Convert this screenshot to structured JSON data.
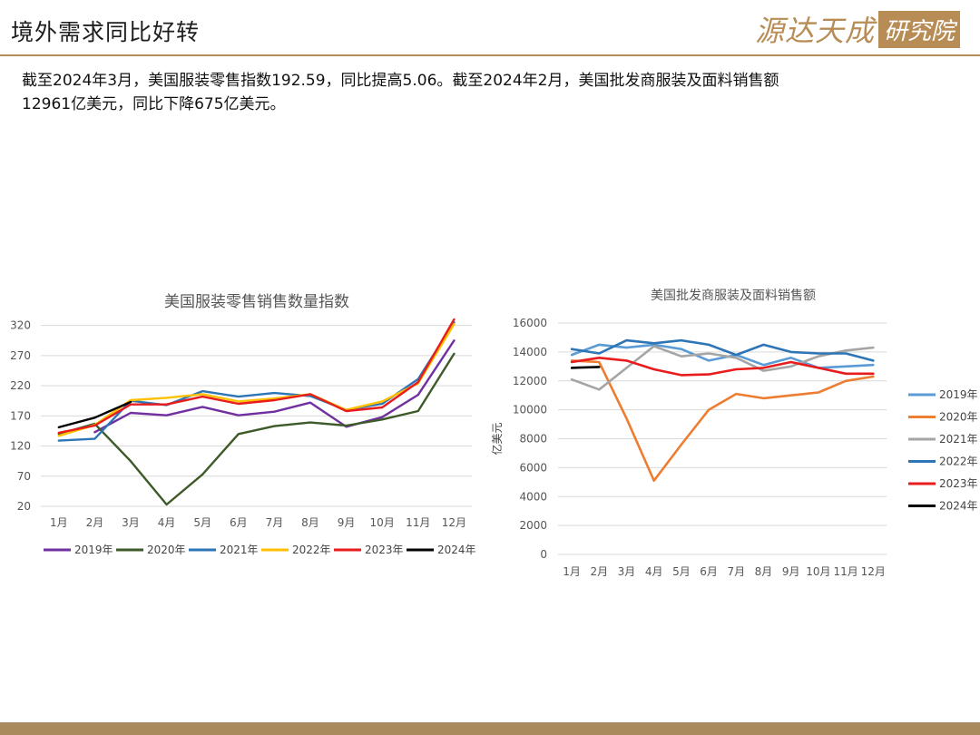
{
  "page": {
    "title": "境外需求同比好转",
    "logo_text_a": "源达天成",
    "logo_text_b": "研究院",
    "summary_line1": "截至2024年3月，美国服装零售指数192.59，同比提高5.06。截至2024年2月，美国批发商服装及面料销售额",
    "summary_line2": "12961亿美元，同比下降675亿美元。"
  },
  "chart_data": [
    {
      "type": "line",
      "title": "美国服装零售销售数量指数",
      "xlabel": "",
      "ylabel": "",
      "ylim": [
        20,
        330
      ],
      "yticks": [
        20,
        70,
        120,
        170,
        220,
        270,
        320
      ],
      "grid": true,
      "legend": "bottom",
      "categories": [
        "1月",
        "2月",
        "3月",
        "4月",
        "5月",
        "6月",
        "7月",
        "8月",
        "9月",
        "10月",
        "11月",
        "12月"
      ],
      "series": [
        {
          "name": "2019年",
          "color": "#7030a0",
          "values": [
            null,
            143,
            175,
            171,
            185,
            171,
            177,
            192,
            152,
            168,
            205,
            295
          ]
        },
        {
          "name": "2020年",
          "color": "#3d5a28",
          "values": [
            140,
            157,
            95,
            23,
            73,
            140,
            153,
            159,
            154,
            164,
            178,
            273
          ]
        },
        {
          "name": "2021年",
          "color": "#2e75b6",
          "values": [
            129,
            132,
            195,
            188,
            211,
            202,
            208,
            203,
            180,
            190,
            231,
            325
          ]
        },
        {
          "name": "2022年",
          "color": "#ffc000",
          "values": [
            137,
            155,
            196,
            200,
            206,
            194,
            199,
            206,
            180,
            194,
            224,
            322
          ]
        },
        {
          "name": "2023年",
          "color": "#e81c1c",
          "values": [
            142,
            154,
            189,
            189,
            202,
            190,
            196,
            206,
            178,
            184,
            226,
            330
          ]
        },
        {
          "name": "2024年",
          "color": "#000000",
          "values": [
            151,
            167,
            193,
            null,
            null,
            null,
            null,
            null,
            null,
            null,
            null,
            null
          ]
        }
      ]
    },
    {
      "type": "line",
      "title": "美国批发商服装及面料销售额",
      "xlabel": "",
      "ylabel": "亿美元",
      "ylim": [
        0,
        16000
      ],
      "yticks": [
        0,
        2000,
        4000,
        6000,
        8000,
        10000,
        12000,
        14000,
        16000
      ],
      "grid": true,
      "legend": "right",
      "categories": [
        "1月",
        "2月",
        "3月",
        "4月",
        "5月",
        "6月",
        "7月",
        "8月",
        "9月",
        "10月",
        "11月",
        "12月"
      ],
      "series": [
        {
          "name": "2019年",
          "color": "#5b9bd5",
          "values": [
            13800,
            14500,
            14300,
            14500,
            14200,
            13400,
            13800,
            13100,
            13600,
            12900,
            13000,
            13100
          ]
        },
        {
          "name": "2020年",
          "color": "#ed7d31",
          "values": [
            13400,
            13300,
            9400,
            5100,
            7600,
            10000,
            11100,
            10800,
            11000,
            11200,
            12000,
            12300
          ]
        },
        {
          "name": "2021年",
          "color": "#a5a5a5",
          "values": [
            12100,
            11400,
            12900,
            14400,
            13700,
            13900,
            13600,
            12700,
            13000,
            13700,
            14100,
            14300
          ]
        },
        {
          "name": "2022年",
          "color": "#2e75b6",
          "values": [
            14200,
            13900,
            14800,
            14600,
            14800,
            14500,
            13800,
            14500,
            14000,
            13900,
            13900,
            13400
          ]
        },
        {
          "name": "2023年",
          "color": "#e81c1c",
          "values": [
            13300,
            13600,
            13400,
            12800,
            12400,
            12450,
            12800,
            12900,
            13300,
            12900,
            12500,
            12500
          ]
        },
        {
          "name": "2024年",
          "color": "#000000",
          "values": [
            12900,
            12961,
            null,
            null,
            null,
            null,
            null,
            null,
            null,
            null,
            null,
            null
          ]
        }
      ]
    }
  ]
}
